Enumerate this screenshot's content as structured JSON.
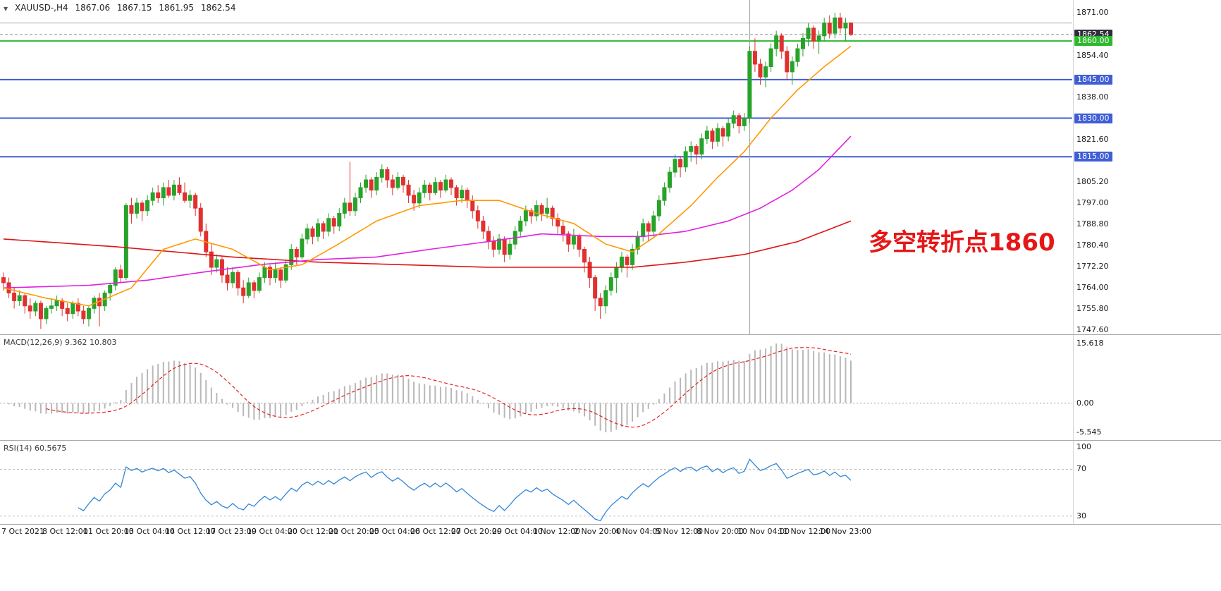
{
  "header": {
    "symbol": "XAUUSD-,H4",
    "open": "1867.06",
    "high": "1867.15",
    "low": "1861.95",
    "close": "1862.54"
  },
  "annotation": {
    "text": "多空转折点1860",
    "color": "#e61717"
  },
  "colors": {
    "up": "#27a32a",
    "down": "#e03030",
    "ma_fast": "#ff9900",
    "ma_mid": "#e020e0",
    "ma_slow": "#dd1414",
    "level_blue": "#3f5ed6",
    "level_green": "#2db82d",
    "macd_hist": "#b8b8b8",
    "macd_signal": "#e62222",
    "rsi_line": "#3385d6"
  },
  "chart_data": {
    "type": "candlestick",
    "symbol": "XAUUSD-",
    "timeframe": "H4",
    "title": "XAUUSD-,H4",
    "ohlc_readout": {
      "open": 1867.06,
      "high": 1867.15,
      "low": 1861.95,
      "close": 1862.54
    },
    "y_axis": {
      "min": 1747.6,
      "max": 1871.0
    },
    "price_axis": {
      "plain": [
        {
          "label": "1871.00",
          "price": 1871.0
        },
        {
          "label": "1854.40",
          "price": 1854.4
        },
        {
          "label": "1838.00",
          "price": 1838.0
        },
        {
          "label": "1821.60",
          "price": 1821.6
        },
        {
          "label": "1805.20",
          "price": 1805.2
        },
        {
          "label": "1797.00",
          "price": 1797.0
        },
        {
          "label": "1788.80",
          "price": 1788.8
        },
        {
          "label": "1780.40",
          "price": 1780.4
        },
        {
          "label": "1772.20",
          "price": 1772.2
        },
        {
          "label": "1764.00",
          "price": 1764.0
        },
        {
          "label": "1755.80",
          "price": 1755.8
        },
        {
          "label": "1747.60",
          "price": 1747.6
        }
      ],
      "badges": [
        {
          "label": "1862.54",
          "price": 1862.54,
          "type": "current"
        },
        {
          "label": "1860.00",
          "price": 1860.0,
          "type": "green"
        },
        {
          "label": "1845.00",
          "price": 1845.0,
          "type": "blue"
        },
        {
          "label": "1830.00",
          "price": 1830.0,
          "type": "blue"
        },
        {
          "label": "1815.00",
          "price": 1815.0,
          "type": "blue"
        }
      ]
    },
    "hlines": [
      {
        "price": 1867.0,
        "color": "#a8a8a8",
        "width": 1,
        "dash": ""
      },
      {
        "price": 1862.54,
        "color": "#8a8a8a",
        "width": 1,
        "dash": "4 3"
      },
      {
        "price": 1860.0,
        "color": "#2db82d",
        "width": 2,
        "dash": ""
      },
      {
        "price": 1845.0,
        "color": "#3f5ed6",
        "width": 2,
        "dash": ""
      },
      {
        "price": 1830.0,
        "color": "#3f5ed6",
        "width": 2,
        "dash": ""
      },
      {
        "price": 1815.0,
        "color": "#3f5ed6",
        "width": 2,
        "dash": ""
      }
    ],
    "vline_index": 140,
    "time_axis": [
      "7 Oct 2021",
      "8 Oct 12:00",
      "11 Oct 20:00",
      "13 Oct 04:00",
      "14 Oct 12:00",
      "17 Oct 23:00",
      "19 Oct 04:00",
      "20 Oct 12:00",
      "21 Oct 20:00",
      "25 Oct 04:00",
      "26 Oct 12:00",
      "27 Oct 20:00",
      "29 Oct 04:00",
      "1 Nov 12:00",
      "2 Nov 20:00",
      "4 Nov 04:00",
      "5 Nov 12:00",
      "8 Nov 20:00",
      "10 Nov 04:00",
      "11 Nov 12:00",
      "14 Nov 23:00"
    ],
    "candles": [
      [
        1768,
        1770,
        1763,
        1766
      ],
      [
        1766,
        1768,
        1760,
        1762
      ],
      [
        1762,
        1764,
        1756,
        1759
      ],
      [
        1759,
        1763,
        1757,
        1761
      ],
      [
        1761,
        1762,
        1754,
        1757
      ],
      [
        1757,
        1760,
        1752,
        1755
      ],
      [
        1755,
        1759,
        1753,
        1758
      ],
      [
        1758,
        1759,
        1748,
        1752
      ],
      [
        1752,
        1757,
        1750,
        1756
      ],
      [
        1756,
        1760,
        1754,
        1757
      ],
      [
        1757,
        1761,
        1755,
        1759
      ],
      [
        1759,
        1760,
        1753,
        1756
      ],
      [
        1756,
        1758,
        1751,
        1754
      ],
      [
        1754,
        1759,
        1752,
        1758
      ],
      [
        1758,
        1760,
        1753,
        1755
      ],
      [
        1755,
        1757,
        1750,
        1752
      ],
      [
        1752,
        1757,
        1749,
        1756
      ],
      [
        1756,
        1761,
        1754,
        1760
      ],
      [
        1760,
        1762,
        1749,
        1757
      ],
      [
        1757,
        1763,
        1755,
        1762
      ],
      [
        1762,
        1766,
        1759,
        1765
      ],
      [
        1765,
        1772,
        1763,
        1771
      ],
      [
        1771,
        1773,
        1766,
        1768
      ],
      [
        1768,
        1797,
        1767,
        1796
      ],
      [
        1796,
        1799,
        1789,
        1793
      ],
      [
        1793,
        1799,
        1791,
        1797
      ],
      [
        1797,
        1798,
        1790,
        1794
      ],
      [
        1794,
        1800,
        1792,
        1798
      ],
      [
        1798,
        1803,
        1796,
        1801
      ],
      [
        1801,
        1804,
        1797,
        1799
      ],
      [
        1799,
        1805,
        1796,
        1803
      ],
      [
        1803,
        1806,
        1799,
        1800
      ],
      [
        1800,
        1806,
        1798,
        1804
      ],
      [
        1804,
        1807,
        1800,
        1801
      ],
      [
        1801,
        1805,
        1797,
        1798
      ],
      [
        1798,
        1802,
        1795,
        1800
      ],
      [
        1800,
        1801,
        1792,
        1795
      ],
      [
        1795,
        1797,
        1784,
        1786
      ],
      [
        1786,
        1789,
        1776,
        1778
      ],
      [
        1778,
        1781,
        1769,
        1772
      ],
      [
        1772,
        1777,
        1770,
        1775
      ],
      [
        1775,
        1776,
        1766,
        1769
      ],
      [
        1769,
        1772,
        1763,
        1766
      ],
      [
        1766,
        1772,
        1764,
        1770
      ],
      [
        1770,
        1771,
        1761,
        1764
      ],
      [
        1764,
        1767,
        1758,
        1761
      ],
      [
        1761,
        1768,
        1760,
        1766
      ],
      [
        1766,
        1767,
        1760,
        1763
      ],
      [
        1763,
        1770,
        1762,
        1768
      ],
      [
        1768,
        1774,
        1766,
        1772
      ],
      [
        1772,
        1773,
        1765,
        1768
      ],
      [
        1768,
        1774,
        1766,
        1771
      ],
      [
        1771,
        1772,
        1764,
        1767
      ],
      [
        1767,
        1775,
        1766,
        1773
      ],
      [
        1773,
        1781,
        1771,
        1779
      ],
      [
        1779,
        1780,
        1773,
        1776
      ],
      [
        1776,
        1785,
        1775,
        1783
      ],
      [
        1783,
        1789,
        1781,
        1787
      ],
      [
        1787,
        1788,
        1781,
        1784
      ],
      [
        1784,
        1791,
        1782,
        1789
      ],
      [
        1789,
        1790,
        1783,
        1786
      ],
      [
        1786,
        1793,
        1784,
        1791
      ],
      [
        1791,
        1792,
        1785,
        1788
      ],
      [
        1788,
        1795,
        1786,
        1793
      ],
      [
        1793,
        1799,
        1791,
        1797
      ],
      [
        1797,
        1813,
        1792,
        1794
      ],
      [
        1794,
        1801,
        1792,
        1799
      ],
      [
        1799,
        1805,
        1797,
        1803
      ],
      [
        1803,
        1808,
        1801,
        1806
      ],
      [
        1806,
        1807,
        1799,
        1802
      ],
      [
        1802,
        1809,
        1800,
        1807
      ],
      [
        1807,
        1812,
        1805,
        1810
      ],
      [
        1810,
        1811,
        1803,
        1806
      ],
      [
        1806,
        1808,
        1800,
        1803
      ],
      [
        1803,
        1809,
        1802,
        1807
      ],
      [
        1807,
        1808,
        1801,
        1804
      ],
      [
        1804,
        1806,
        1797,
        1800
      ],
      [
        1800,
        1802,
        1794,
        1797
      ],
      [
        1797,
        1803,
        1795,
        1801
      ],
      [
        1801,
        1806,
        1799,
        1804
      ],
      [
        1804,
        1805,
        1798,
        1801
      ],
      [
        1801,
        1807,
        1800,
        1805
      ],
      [
        1805,
        1806,
        1799,
        1802
      ],
      [
        1802,
        1808,
        1801,
        1806
      ],
      [
        1806,
        1807,
        1800,
        1803
      ],
      [
        1803,
        1804,
        1796,
        1799
      ],
      [
        1799,
        1804,
        1797,
        1802
      ],
      [
        1802,
        1803,
        1795,
        1798
      ],
      [
        1798,
        1800,
        1791,
        1794
      ],
      [
        1794,
        1796,
        1787,
        1790
      ],
      [
        1790,
        1792,
        1783,
        1786
      ],
      [
        1786,
        1788,
        1779,
        1782
      ],
      [
        1782,
        1784,
        1776,
        1779
      ],
      [
        1779,
        1785,
        1777,
        1783
      ],
      [
        1783,
        1784,
        1774,
        1777
      ],
      [
        1777,
        1783,
        1775,
        1781
      ],
      [
        1781,
        1788,
        1779,
        1786
      ],
      [
        1786,
        1792,
        1784,
        1790
      ],
      [
        1790,
        1796,
        1788,
        1794
      ],
      [
        1794,
        1795,
        1789,
        1792
      ],
      [
        1792,
        1798,
        1790,
        1796
      ],
      [
        1796,
        1797,
        1790,
        1793
      ],
      [
        1793,
        1799,
        1791,
        1795
      ],
      [
        1795,
        1796,
        1788,
        1791
      ],
      [
        1791,
        1793,
        1785,
        1788
      ],
      [
        1788,
        1790,
        1782,
        1785
      ],
      [
        1785,
        1786,
        1778,
        1781
      ],
      [
        1781,
        1787,
        1779,
        1784
      ],
      [
        1784,
        1785,
        1776,
        1779
      ],
      [
        1779,
        1780,
        1770,
        1774
      ],
      [
        1774,
        1776,
        1764,
        1768
      ],
      [
        1768,
        1769,
        1755,
        1760
      ],
      [
        1760,
        1762,
        1752,
        1757
      ],
      [
        1757,
        1765,
        1754,
        1763
      ],
      [
        1763,
        1770,
        1761,
        1768
      ],
      [
        1768,
        1774,
        1762,
        1772
      ],
      [
        1772,
        1778,
        1770,
        1776
      ],
      [
        1776,
        1777,
        1768,
        1773
      ],
      [
        1773,
        1781,
        1771,
        1779
      ],
      [
        1779,
        1786,
        1777,
        1784
      ],
      [
        1784,
        1791,
        1782,
        1789
      ],
      [
        1789,
        1790,
        1782,
        1786
      ],
      [
        1786,
        1794,
        1784,
        1792
      ],
      [
        1792,
        1800,
        1790,
        1798
      ],
      [
        1798,
        1805,
        1796,
        1803
      ],
      [
        1803,
        1811,
        1801,
        1809
      ],
      [
        1809,
        1816,
        1807,
        1814
      ],
      [
        1814,
        1815,
        1807,
        1811
      ],
      [
        1811,
        1819,
        1809,
        1817
      ],
      [
        1817,
        1821,
        1813,
        1819
      ],
      [
        1819,
        1820,
        1812,
        1816
      ],
      [
        1816,
        1824,
        1814,
        1822
      ],
      [
        1822,
        1827,
        1820,
        1825
      ],
      [
        1825,
        1826,
        1818,
        1821
      ],
      [
        1821,
        1828,
        1819,
        1826
      ],
      [
        1826,
        1827,
        1819,
        1823
      ],
      [
        1823,
        1830,
        1821,
        1828
      ],
      [
        1828,
        1833,
        1826,
        1831
      ],
      [
        1831,
        1832,
        1824,
        1827
      ],
      [
        1827,
        1832,
        1825,
        1830
      ],
      [
        1830,
        1858,
        1828,
        1856
      ],
      [
        1856,
        1861,
        1848,
        1851
      ],
      [
        1851,
        1853,
        1843,
        1846
      ],
      [
        1846,
        1852,
        1842,
        1850
      ],
      [
        1850,
        1859,
        1848,
        1857
      ],
      [
        1857,
        1864,
        1854,
        1862
      ],
      [
        1862,
        1863,
        1853,
        1856
      ],
      [
        1856,
        1858,
        1845,
        1848
      ],
      [
        1848,
        1854,
        1843,
        1852
      ],
      [
        1852,
        1859,
        1850,
        1857
      ],
      [
        1857,
        1863,
        1854,
        1861
      ],
      [
        1861,
        1867,
        1858,
        1865
      ],
      [
        1865,
        1866,
        1857,
        1860
      ],
      [
        1860,
        1864,
        1855,
        1862
      ],
      [
        1862,
        1869,
        1860,
        1867
      ],
      [
        1867,
        1870,
        1861,
        1863
      ],
      [
        1863,
        1871,
        1861,
        1869
      ],
      [
        1869,
        1871,
        1863,
        1865
      ],
      [
        1865,
        1869,
        1860,
        1867
      ],
      [
        1867.06,
        1867.15,
        1861.95,
        1862.54
      ]
    ],
    "ma_fast_points": [
      [
        0,
        1764
      ],
      [
        8,
        1760
      ],
      [
        16,
        1757
      ],
      [
        24,
        1764
      ],
      [
        30,
        1779
      ],
      [
        36,
        1783
      ],
      [
        43,
        1779
      ],
      [
        50,
        1771
      ],
      [
        56,
        1773
      ],
      [
        62,
        1780
      ],
      [
        70,
        1790
      ],
      [
        78,
        1796
      ],
      [
        86,
        1798
      ],
      [
        93,
        1798
      ],
      [
        100,
        1793
      ],
      [
        107,
        1789
      ],
      [
        113,
        1781
      ],
      [
        118,
        1778
      ],
      [
        123,
        1785
      ],
      [
        129,
        1796
      ],
      [
        134,
        1807
      ],
      [
        139,
        1817
      ],
      [
        144,
        1830
      ],
      [
        149,
        1841
      ],
      [
        154,
        1850
      ],
      [
        159,
        1858
      ]
    ],
    "ma_mid_points": [
      [
        0,
        1764
      ],
      [
        16,
        1765
      ],
      [
        27,
        1767
      ],
      [
        37,
        1770
      ],
      [
        48,
        1773
      ],
      [
        59,
        1775
      ],
      [
        70,
        1776
      ],
      [
        80,
        1779
      ],
      [
        91,
        1782
      ],
      [
        101,
        1785
      ],
      [
        112,
        1784
      ],
      [
        120,
        1784
      ],
      [
        128,
        1786
      ],
      [
        136,
        1790
      ],
      [
        142,
        1795
      ],
      [
        148,
        1802
      ],
      [
        153,
        1810
      ],
      [
        159,
        1823
      ]
    ],
    "ma_slow_points": [
      [
        0,
        1783
      ],
      [
        21,
        1780
      ],
      [
        43,
        1776
      ],
      [
        59,
        1774
      ],
      [
        75,
        1773
      ],
      [
        91,
        1772
      ],
      [
        107,
        1772
      ],
      [
        118,
        1772
      ],
      [
        128,
        1774
      ],
      [
        139,
        1777
      ],
      [
        149,
        1782
      ],
      [
        159,
        1790
      ]
    ],
    "macd": {
      "label": "MACD(12,26,9) 9.362 10.803",
      "params": {
        "fast": 12,
        "slow": 26,
        "signal": 9
      },
      "current_values": [
        9.362,
        10.803
      ],
      "axis_labels": [
        "15.618",
        "0.00",
        "-5.545"
      ]
    },
    "rsi": {
      "label": "RSI(14) 60.5675",
      "period": 14,
      "current_value": 60.5675,
      "levels": [
        70,
        30
      ],
      "axis_top_label": "100",
      "level_labels": [
        "70",
        "30"
      ]
    }
  }
}
